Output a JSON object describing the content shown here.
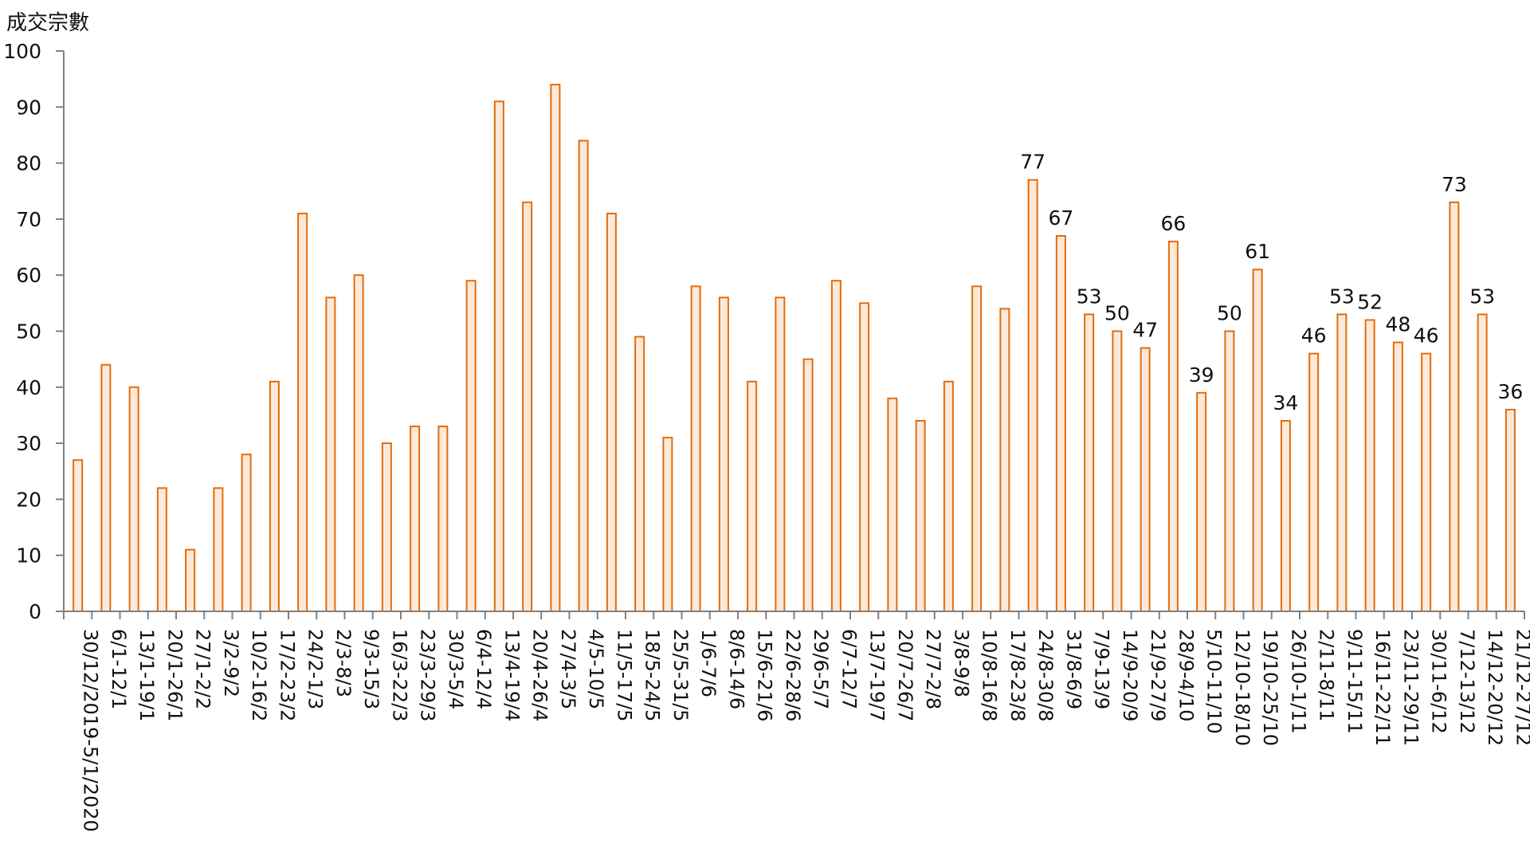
{
  "chart_data": {
    "type": "bar",
    "title": "",
    "ylabel": "成交宗數",
    "xlabel": "",
    "ylim": [
      0,
      100
    ],
    "yticks": [
      0,
      10,
      20,
      30,
      40,
      50,
      60,
      70,
      80,
      90,
      100
    ],
    "grid": false,
    "colors": {
      "bar_fill": "#fde9da",
      "bar_stroke": "#e36c0a",
      "axis": "#808080"
    },
    "categories": [
      "30/12/2019-5/1/2020",
      "6/1-12/1",
      "13/1-19/1",
      "20/1-26/1",
      "27/1-2/2",
      "3/2-9/2",
      "10/2-16/2",
      "17/2-23/2",
      "24/2-1/3",
      "2/3-8/3",
      "9/3-15/3",
      "16/3-22/3",
      "23/3-29/3",
      "30/3-5/4",
      "6/4-12/4",
      "13/4-19/4",
      "20/4-26/4",
      "27/4-3/5",
      "4/5-10/5",
      "11/5-17/5",
      "18/5-24/5",
      "25/5-31/5",
      "1/6-7/6",
      "8/6-14/6",
      "15/6-21/6",
      "22/6-28/6",
      "29/6-5/7",
      "6/7-12/7",
      "13/7-19/7",
      "20/7-26/7",
      "27/7-2/8",
      "3/8-9/8",
      "10/8-16/8",
      "17/8-23/8",
      "24/8-30/8",
      "31/8-6/9",
      "7/9-13/9",
      "14/9-20/9",
      "21/9-27/9",
      "28/9-4/10",
      "5/10-11/10",
      "12/10-18/10",
      "19/10-25/10",
      "26/10-1/11",
      "2/11-8/11",
      "9/11-15/11",
      "16/11-22/11",
      "23/11-29/11",
      "30/11-6/12",
      "7/12-13/12",
      "14/12-20/12",
      "21/12-27/12"
    ],
    "values": [
      27,
      44,
      40,
      22,
      11,
      22,
      28,
      41,
      71,
      56,
      60,
      30,
      33,
      33,
      59,
      91,
      73,
      94,
      84,
      71,
      49,
      31,
      58,
      56,
      41,
      56,
      45,
      59,
      55,
      38,
      34,
      41,
      58,
      54,
      77,
      67,
      53,
      50,
      47,
      66,
      39,
      50,
      61,
      34,
      46,
      53,
      52,
      48,
      46,
      73,
      53,
      36
    ],
    "data_labels_from_index": 34
  }
}
